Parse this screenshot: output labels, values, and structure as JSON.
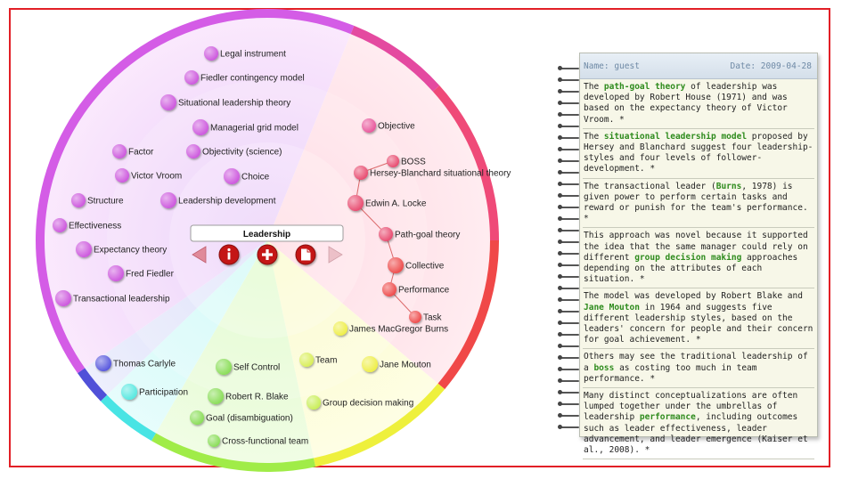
{
  "center": {
    "title": "Leadership"
  },
  "toolbar": {
    "prev_icon": "arrow-left-icon",
    "info_icon": "info-icon",
    "add_icon": "plus-icon",
    "doc_icon": "document-icon",
    "next_icon": "arrow-right-icon"
  },
  "nodes": [
    {
      "label": "Legal instrument",
      "color": "#cc55dd"
    },
    {
      "label": "Fiedler contingency model",
      "color": "#cc55dd"
    },
    {
      "label": "Situational leadership theory",
      "color": "#cc55dd"
    },
    {
      "label": "Managerial grid model",
      "color": "#cc55dd"
    },
    {
      "label": "Factor",
      "color": "#cc55dd"
    },
    {
      "label": "Objectivity (science)",
      "color": "#cc55dd"
    },
    {
      "label": "Victor Vroom",
      "color": "#cc55dd"
    },
    {
      "label": "Choice",
      "color": "#cc55dd"
    },
    {
      "label": "Structure",
      "color": "#cc55dd"
    },
    {
      "label": "Leadership development",
      "color": "#cc55dd"
    },
    {
      "label": "Effectiveness",
      "color": "#cc55dd"
    },
    {
      "label": "Expectancy theory",
      "color": "#cc55dd"
    },
    {
      "label": "Fred Fiedler",
      "color": "#cc55dd"
    },
    {
      "label": "Transactional leadership",
      "color": "#cc55dd"
    },
    {
      "label": "Objective",
      "color": "#e8559a"
    },
    {
      "label": "BOSS",
      "color": "#e84a6e"
    },
    {
      "label": "Hersey-Blanchard situational theory",
      "color": "#e84a6e"
    },
    {
      "label": "Edwin A. Locke",
      "color": "#e84a6e"
    },
    {
      "label": "Path-goal theory",
      "color": "#e84a6e"
    },
    {
      "label": "Collective",
      "color": "#ee4a4a"
    },
    {
      "label": "Performance",
      "color": "#ee4a4a"
    },
    {
      "label": "Task",
      "color": "#ee4a4a"
    },
    {
      "label": "James MacGregor Burns",
      "color": "#eeee44"
    },
    {
      "label": "Team",
      "color": "#d8ee55"
    },
    {
      "label": "Jane Mouton",
      "color": "#eeee44"
    },
    {
      "label": "Group decision making",
      "color": "#c8ee55"
    },
    {
      "label": "Thomas Carlyle",
      "color": "#5555dd"
    },
    {
      "label": "Self Control",
      "color": "#88dd55"
    },
    {
      "label": "Participation",
      "color": "#55e8e0"
    },
    {
      "label": "Robert R. Blake",
      "color": "#88dd55"
    },
    {
      "label": "Goal (disambiguation)",
      "color": "#88dd55"
    },
    {
      "label": "Cross-functional team",
      "color": "#88dd55"
    }
  ],
  "notes": {
    "name": "Name: guest",
    "date": "Date: 2009-04-28",
    "entries": [
      [
        {
          "t": "The "
        },
        {
          "t": "path-goal theory",
          "b": true
        },
        {
          "t": " of leadership was developed by Robert House (1971) and was based on the expectancy theory of Victor Vroom. *"
        }
      ],
      [
        {
          "t": "The "
        },
        {
          "t": "situational leadership model",
          "b": true
        },
        {
          "t": " proposed by Hersey and Blanchard suggest four leadership-styles and four levels of follower-development. *"
        }
      ],
      [
        {
          "t": "The transactional leader ("
        },
        {
          "t": "Burns",
          "b": true
        },
        {
          "t": ", 1978) is given power to perform certain tasks and reward or punish for the team's performance. *"
        }
      ],
      [
        {
          "t": "This approach was novel because it supported the idea that the same manager could rely on different "
        },
        {
          "t": "group decision making",
          "b": true
        },
        {
          "t": " approaches depending on the attributes of each situation. *"
        }
      ],
      [
        {
          "t": "The model was developed by Robert Blake and "
        },
        {
          "t": "Jane Mouton",
          "b": true
        },
        {
          "t": " in 1964 and suggests five different leadership styles, based on the leaders' concern for people and their concern for goal achievement. *"
        }
      ],
      [
        {
          "t": "Others may see the traditional leadership of a "
        },
        {
          "t": "boss",
          "b": true
        },
        {
          "t": " as costing too much in team performance. *"
        }
      ],
      [
        {
          "t": "Many distinct conceptualizations are often lumped together under the umbrellas of leadership "
        },
        {
          "t": "performance",
          "b": true
        },
        {
          "t": ", including outcomes such as leader effectiveness, leader advancement, and leader emergence (Kaiser et al., 2008). *"
        }
      ]
    ]
  }
}
